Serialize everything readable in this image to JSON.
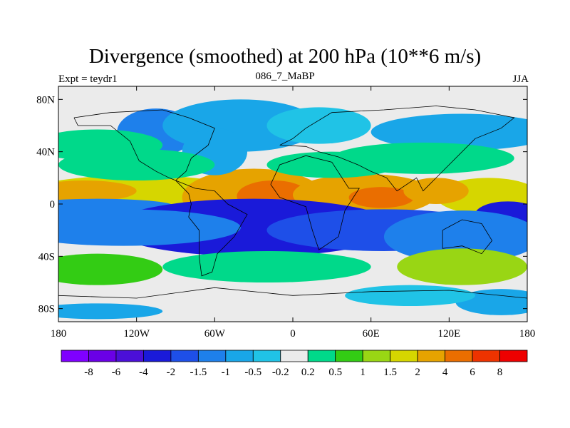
{
  "chart_data": {
    "type": "heatmap",
    "title": "Divergence (smoothed) at 200 hPa (10**6 m/s)",
    "left_label": "Expt = teydr1",
    "center_label": "086_7_MaBP",
    "right_label": "JJA",
    "xlim": [
      -180,
      180
    ],
    "ylim": [
      -90,
      90
    ],
    "x_ticks": [
      {
        "value": -180,
        "label": "180"
      },
      {
        "value": -120,
        "label": "120W"
      },
      {
        "value": -60,
        "label": "60W"
      },
      {
        "value": 0,
        "label": "0"
      },
      {
        "value": 60,
        "label": "60E"
      },
      {
        "value": 120,
        "label": "120E"
      },
      {
        "value": 180,
        "label": "180"
      }
    ],
    "y_ticks": [
      {
        "value": 80,
        "label": "80N"
      },
      {
        "value": 40,
        "label": "40N"
      },
      {
        "value": 0,
        "label": "0"
      },
      {
        "value": -40,
        "label": "40S"
      },
      {
        "value": -80,
        "label": "80S"
      }
    ],
    "colorbar": {
      "colors": [
        "#7f00ff",
        "#6a00e6",
        "#4b0fd8",
        "#1a1ad9",
        "#1e4fe8",
        "#1e80eb",
        "#19a6e8",
        "#20c3e6",
        "#ebebeb",
        "#00d98a",
        "#33cc14",
        "#99d614",
        "#d6d600",
        "#e6a300",
        "#ea6e00",
        "#ee3300",
        "#ee0000"
      ],
      "labels": [
        "-8",
        "-6",
        "-4",
        "-2",
        "-1.5",
        "-1",
        "-0.5",
        "-0.2",
        "0.2",
        "0.5",
        "1",
        "1.5",
        "2",
        "4",
        "6",
        "8"
      ]
    },
    "regions": [
      {
        "lon": -120,
        "lat": 4,
        "w": 95,
        "h": 18,
        "level": 12
      },
      {
        "lon": -160,
        "lat": 10,
        "w": 40,
        "h": 8,
        "level": 13
      },
      {
        "lon": -30,
        "lat": 5,
        "w": 55,
        "h": 22,
        "level": 13
      },
      {
        "lon": -15,
        "lat": 6,
        "w": 28,
        "h": 12,
        "level": 14
      },
      {
        "lon": 55,
        "lat": 7,
        "w": 55,
        "h": 16,
        "level": 13
      },
      {
        "lon": 68,
        "lat": 5,
        "w": 25,
        "h": 8,
        "level": 14
      },
      {
        "lon": 150,
        "lat": 6,
        "w": 40,
        "h": 14,
        "level": 12
      },
      {
        "lon": 110,
        "lat": 10,
        "w": 25,
        "h": 10,
        "level": 13
      },
      {
        "lon": -150,
        "lat": -2,
        "w": 60,
        "h": 6,
        "level": 5
      },
      {
        "lon": -30,
        "lat": -18,
        "w": 110,
        "h": 22,
        "level": 3
      },
      {
        "lon": 70,
        "lat": -20,
        "w": 90,
        "h": 16,
        "level": 4
      },
      {
        "lon": -130,
        "lat": -18,
        "w": 90,
        "h": 14,
        "level": 5
      },
      {
        "lon": 165,
        "lat": -8,
        "w": 25,
        "h": 10,
        "level": 3
      },
      {
        "lon": 130,
        "lat": -25,
        "w": 60,
        "h": 20,
        "level": 5
      },
      {
        "lon": -105,
        "lat": 55,
        "w": 30,
        "h": 18,
        "level": 5
      },
      {
        "lon": -40,
        "lat": 60,
        "w": 60,
        "h": 20,
        "level": 6
      },
      {
        "lon": -60,
        "lat": 40,
        "w": 25,
        "h": 18,
        "level": 6
      },
      {
        "lon": 20,
        "lat": 60,
        "w": 40,
        "h": 14,
        "level": 7
      },
      {
        "lon": 130,
        "lat": 55,
        "w": 70,
        "h": 14,
        "level": 6
      },
      {
        "lon": -150,
        "lat": 45,
        "w": 50,
        "h": 12,
        "level": 9
      },
      {
        "lon": -120,
        "lat": 30,
        "w": 60,
        "h": 12,
        "level": 9
      },
      {
        "lon": 30,
        "lat": 30,
        "w": 50,
        "h": 10,
        "level": 9
      },
      {
        "lon": 100,
        "lat": 35,
        "w": 70,
        "h": 12,
        "level": 9
      },
      {
        "lon": -150,
        "lat": -50,
        "w": 50,
        "h": 12,
        "level": 10
      },
      {
        "lon": -20,
        "lat": -48,
        "w": 80,
        "h": 12,
        "level": 9
      },
      {
        "lon": 130,
        "lat": -48,
        "w": 50,
        "h": 14,
        "level": 11
      },
      {
        "lon": 160,
        "lat": -75,
        "w": 35,
        "h": 10,
        "level": 6
      },
      {
        "lon": -150,
        "lat": -82,
        "w": 50,
        "h": 6,
        "level": 6
      },
      {
        "lon": 90,
        "lat": -70,
        "w": 50,
        "h": 8,
        "level": 7
      }
    ]
  }
}
